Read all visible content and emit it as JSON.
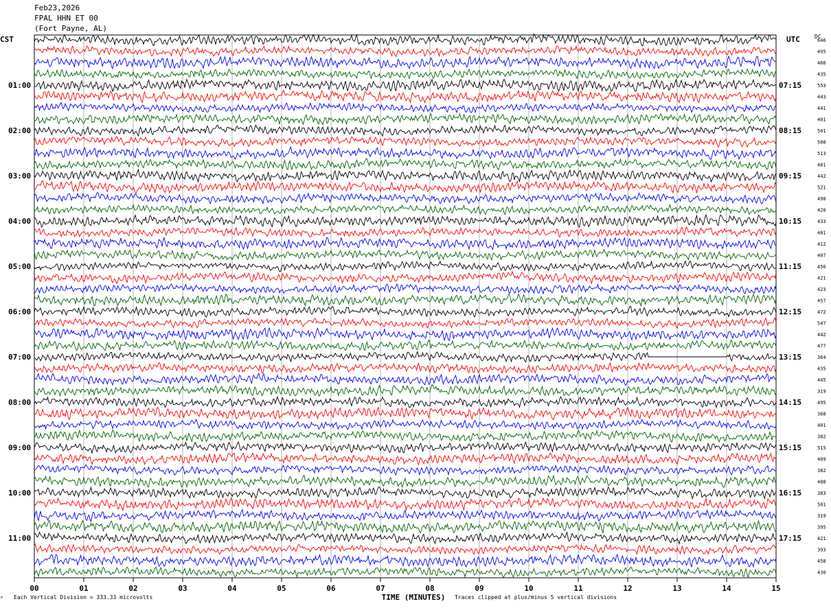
{
  "header": {
    "date": "Feb23,2026",
    "station": "FPAL HHN ET 00",
    "location": "(Fort Payne, AL)"
  },
  "left_tz": "CST",
  "right_tz": "UTC",
  "dc_label": "DC",
  "footer": {
    "scale_note": "Each Vertical Division =  333.33 microvolts",
    "clip_note": "Traces clipped at plus/minus 5 vertical divisions"
  },
  "colors": {
    "trace_cycle": [
      "#000000",
      "#ff0000",
      "#0000ff",
      "#006400"
    ],
    "grid": "#a0a0a0"
  },
  "chart_data": {
    "type": "line",
    "title": "",
    "xlabel": "TIME (MINUTES)",
    "ylabel": "",
    "x_ticks": [
      "00",
      "01",
      "02",
      "03",
      "04",
      "05",
      "06",
      "07",
      "08",
      "09",
      "10",
      "11",
      "12",
      "13",
      "14",
      "15"
    ],
    "xlim": [
      0,
      15
    ],
    "left_hour_labels": [
      "01:00",
      "02:00",
      "03:00",
      "04:00",
      "05:00",
      "06:00",
      "07:00",
      "08:00",
      "09:00",
      "10:00",
      "11:00"
    ],
    "right_hour_labels": [
      "07:15",
      "08:15",
      "09:15",
      "10:15",
      "11:15",
      "12:15",
      "13:15",
      "14:15",
      "15:15",
      "16:15",
      "17:15"
    ],
    "dc_values": [
      "646",
      "495",
      "466",
      "435",
      "553",
      "443",
      "441",
      "401",
      "501",
      "508",
      "513",
      "481",
      "442",
      "521",
      "490",
      "420",
      "433",
      "481",
      "412",
      "407",
      "456",
      "421",
      "423",
      "457",
      "472",
      "547",
      "442",
      "477",
      "364",
      "435",
      "445",
      "319",
      "495",
      "368",
      "401",
      "382",
      "515",
      "409",
      "382",
      "488",
      "383",
      "501",
      "319",
      "395",
      "421",
      "393",
      "458",
      "430"
    ],
    "gap_segment": {
      "trace_index": 28,
      "x_start_min": 12.4,
      "x_end_min": 14.0
    }
  }
}
